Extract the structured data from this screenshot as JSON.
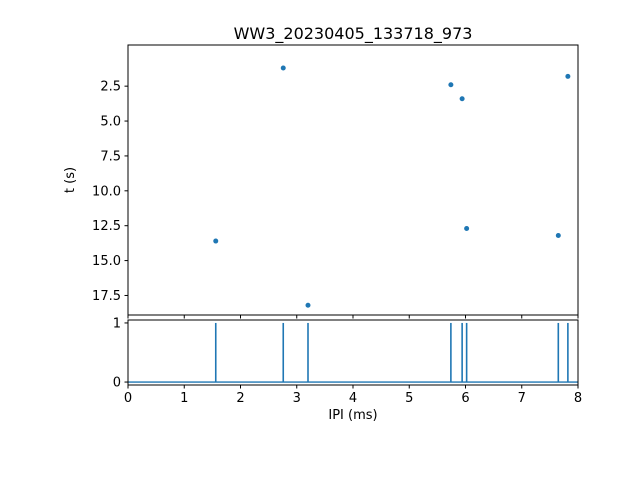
{
  "figure_title": "WW3_20230405_133718_973",
  "chart_data": [
    {
      "type": "scatter",
      "title": "WW3_20230405_133718_973",
      "xlabel": "",
      "ylabel": "t (s)",
      "x": [
        1.56,
        2.76,
        3.2,
        5.74,
        5.94,
        6.02,
        7.65,
        7.82
      ],
      "y": [
        13.6,
        1.2,
        18.2,
        2.4,
        3.4,
        12.7,
        13.2,
        1.8
      ],
      "xlim": [
        0,
        8
      ],
      "ylim": [
        18.9,
        -0.45
      ],
      "y_axis_inverted": true,
      "yticks": [
        2.5,
        5.0,
        7.5,
        10.0,
        12.5,
        15.0,
        17.5
      ],
      "ytick_labels": [
        "2.5",
        "5.0",
        "7.5",
        "10.0",
        "12.5",
        "15.0",
        "17.5"
      ],
      "marker_color": "#1f77b4",
      "grid": false,
      "legend": "none"
    },
    {
      "type": "stem",
      "xlabel": "IPI (ms)",
      "ylabel": "",
      "x": [
        1.56,
        2.76,
        3.2,
        5.74,
        5.94,
        6.02,
        7.65,
        7.82
      ],
      "values": [
        1,
        1,
        1,
        1,
        1,
        1,
        1,
        1
      ],
      "baseline": 0,
      "xlim": [
        0,
        8
      ],
      "ylim": [
        -0.05,
        1.05
      ],
      "xticks": [
        0,
        1,
        2,
        3,
        4,
        5,
        6,
        7,
        8
      ],
      "xtick_labels": [
        "0",
        "1",
        "2",
        "3",
        "4",
        "5",
        "6",
        "7",
        "8"
      ],
      "yticks": [
        0,
        1
      ],
      "ytick_labels": [
        "0",
        "1"
      ],
      "line_color": "#1f77b4",
      "grid": false,
      "legend": "none"
    }
  ],
  "colors": {
    "accent": "#1f77b4",
    "axes": "#000000",
    "background": "#ffffff"
  }
}
